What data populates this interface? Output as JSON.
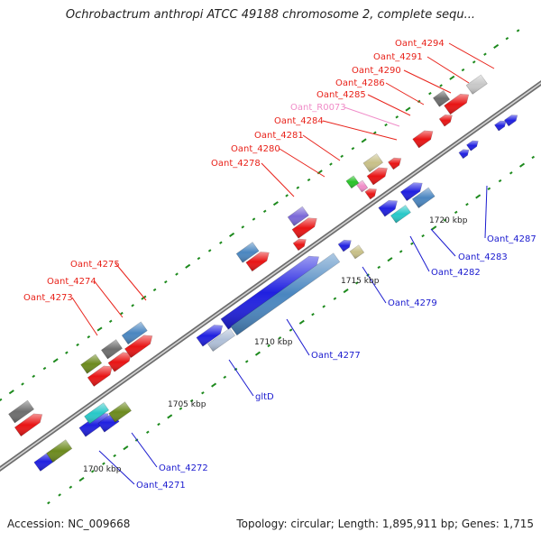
{
  "title": "Ochrobactrum anthropi ATCC 49188 chromosome 2, complete sequ...",
  "footer": {
    "accession": "Accession: NC_009668",
    "summary": "Topology: circular; Length: 1,895,911 bp; Genes: 1,715"
  },
  "colors": {
    "red_label": "#e8221a",
    "blue_label": "#1a1acf",
    "pink_label": "#f08cc8",
    "backbone": "#8a8a8a"
  },
  "ticks": [
    "1700 kbp",
    "1705 kbp",
    "1710 kbp",
    "1715 kbp",
    "1720 kbp"
  ],
  "top_labels": [
    {
      "text": "Oant_4294",
      "tone": "red"
    },
    {
      "text": "Oant_4291",
      "tone": "red"
    },
    {
      "text": "Oant_4290",
      "tone": "red"
    },
    {
      "text": "Oant_4286",
      "tone": "red"
    },
    {
      "text": "Oant_4285",
      "tone": "red"
    },
    {
      "text": "Oant_R0073",
      "tone": "pink"
    },
    {
      "text": "Oant_4284",
      "tone": "red"
    },
    {
      "text": "Oant_4281",
      "tone": "red"
    },
    {
      "text": "Oant_4280",
      "tone": "red"
    },
    {
      "text": "Oant_4278",
      "tone": "red"
    },
    {
      "text": "Oant_4275",
      "tone": "red"
    },
    {
      "text": "Oant_4274",
      "tone": "red"
    },
    {
      "text": "Oant_4273",
      "tone": "red"
    }
  ],
  "bottom_labels": [
    {
      "text": "Oant_4287",
      "tone": "blue"
    },
    {
      "text": "Oant_4283",
      "tone": "blue"
    },
    {
      "text": "Oant_4282",
      "tone": "blue"
    },
    {
      "text": "Oant_4279",
      "tone": "blue"
    },
    {
      "text": "Oant_4277",
      "tone": "blue"
    },
    {
      "text": "gltD",
      "tone": "blue"
    },
    {
      "text": "Oant_4272",
      "tone": "blue"
    },
    {
      "text": "Oant_4271",
      "tone": "blue"
    }
  ]
}
